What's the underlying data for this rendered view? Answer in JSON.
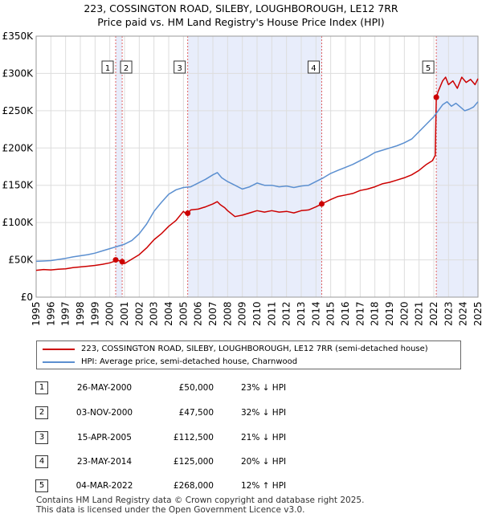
{
  "title_line1": "223, COSSINGTON ROAD, SILEBY, LOUGHBOROUGH, LE12 7RR",
  "title_line2": "Price paid vs. HM Land Registry's House Price Index (HPI)",
  "colors": {
    "property": "#cc0000",
    "hpi": "#5b8fd0",
    "shade": "#e8edfb",
    "vline": "#e06060",
    "grid": "#dddddd"
  },
  "chart_data": {
    "type": "line",
    "xlim": [
      1995,
      2025
    ],
    "ylim": [
      0,
      350000
    ],
    "y_ticks": [
      {
        "value": 0,
        "label": "£0"
      },
      {
        "value": 50000,
        "label": "£50K"
      },
      {
        "value": 100000,
        "label": "£100K"
      },
      {
        "value": 150000,
        "label": "£150K"
      },
      {
        "value": 200000,
        "label": "£200K"
      },
      {
        "value": 250000,
        "label": "£250K"
      },
      {
        "value": 300000,
        "label": "£300K"
      },
      {
        "value": 350000,
        "label": "£350K"
      }
    ],
    "x_ticks": [
      "1995",
      "1996",
      "1997",
      "1998",
      "1999",
      "2000",
      "2001",
      "2002",
      "2003",
      "2004",
      "2005",
      "2006",
      "2007",
      "2008",
      "2009",
      "2010",
      "2011",
      "2012",
      "2013",
      "2014",
      "2015",
      "2016",
      "2017",
      "2018",
      "2019",
      "2020",
      "2021",
      "2022",
      "2023",
      "2024",
      "2025"
    ],
    "shaded_ranges": [
      [
        2000.4,
        2000.84
      ],
      [
        2005.29,
        2014.39
      ],
      [
        2022.17,
        2025.0
      ]
    ],
    "series": [
      {
        "name": "223, COSSINGTON ROAD, SILEBY, LOUGHBOROUGH, LE12 7RR (semi-detached house)",
        "key": "property",
        "x": [
          1995.0,
          1995.5,
          1996.0,
          1996.5,
          1997.0,
          1997.5,
          1998.0,
          1998.5,
          1999.0,
          1999.5,
          2000.0,
          2000.3,
          2000.4,
          2000.6,
          2000.84,
          2001.0,
          2001.5,
          2002.0,
          2002.5,
          2003.0,
          2003.5,
          2004.0,
          2004.5,
          2005.0,
          2005.28,
          2005.29,
          2005.5,
          2006.0,
          2006.5,
          2007.0,
          2007.3,
          2007.5,
          2007.8,
          2008.0,
          2008.5,
          2009.0,
          2009.5,
          2010.0,
          2010.5,
          2011.0,
          2011.5,
          2012.0,
          2012.5,
          2013.0,
          2013.5,
          2014.0,
          2014.39,
          2014.5,
          2015.0,
          2015.5,
          2016.0,
          2016.5,
          2017.0,
          2017.5,
          2018.0,
          2018.5,
          2019.0,
          2019.5,
          2020.0,
          2020.5,
          2021.0,
          2021.5,
          2021.9,
          2022.1,
          2022.17,
          2022.3,
          2022.6,
          2022.8,
          2023.0,
          2023.3,
          2023.6,
          2023.9,
          2024.2,
          2024.5,
          2024.8,
          2025.0
        ],
        "y": [
          36000,
          37000,
          36500,
          37500,
          38000,
          39500,
          40500,
          41500,
          42500,
          44000,
          46000,
          48000,
          50000,
          49000,
          47500,
          45000,
          51000,
          57000,
          66000,
          77000,
          85000,
          95000,
          103000,
          115000,
          110000,
          112500,
          117000,
          118000,
          121000,
          125000,
          128000,
          124000,
          120000,
          116000,
          108000,
          110000,
          113000,
          116000,
          114000,
          116000,
          114000,
          115000,
          113000,
          116000,
          117000,
          121000,
          125000,
          126000,
          131000,
          135000,
          137000,
          139000,
          143000,
          145000,
          148000,
          152000,
          154000,
          157000,
          160000,
          164000,
          170000,
          178000,
          183000,
          190000,
          268000,
          276000,
          290000,
          295000,
          285000,
          290000,
          280000,
          295000,
          288000,
          292000,
          285000,
          293000
        ]
      },
      {
        "name": "HPI: Average price, semi-detached house, Charnwood",
        "key": "hpi",
        "x": [
          1995.0,
          1995.5,
          1996.0,
          1996.5,
          1997.0,
          1997.5,
          1998.0,
          1998.5,
          1999.0,
          1999.5,
          2000.0,
          2000.5,
          2001.0,
          2001.5,
          2002.0,
          2002.5,
          2003.0,
          2003.5,
          2004.0,
          2004.5,
          2005.0,
          2005.5,
          2006.0,
          2006.5,
          2007.0,
          2007.3,
          2007.6,
          2008.0,
          2008.5,
          2009.0,
          2009.5,
          2010.0,
          2010.5,
          2011.0,
          2011.5,
          2012.0,
          2012.5,
          2013.0,
          2013.5,
          2014.0,
          2014.5,
          2015.0,
          2015.5,
          2016.0,
          2016.5,
          2017.0,
          2017.5,
          2018.0,
          2018.5,
          2019.0,
          2019.5,
          2020.0,
          2020.5,
          2021.0,
          2021.5,
          2022.0,
          2022.3,
          2022.6,
          2022.9,
          2023.2,
          2023.5,
          2023.8,
          2024.1,
          2024.4,
          2024.7,
          2025.0
        ],
        "y": [
          48000,
          48500,
          49000,
          50500,
          52000,
          54000,
          55500,
          57000,
          59000,
          62000,
          65000,
          68000,
          71000,
          76000,
          85000,
          98000,
          115000,
          127000,
          138000,
          144000,
          147000,
          148000,
          153000,
          158000,
          164000,
          167000,
          160000,
          155000,
          150000,
          145000,
          148000,
          153000,
          150000,
          150000,
          148000,
          149000,
          147000,
          149000,
          150000,
          155000,
          160000,
          166000,
          170000,
          174000,
          178000,
          183000,
          188000,
          194000,
          197000,
          200000,
          203000,
          207000,
          212000,
          222000,
          232000,
          242000,
          250000,
          258000,
          262000,
          256000,
          260000,
          255000,
          250000,
          252000,
          255000,
          262000
        ]
      }
    ],
    "sales": [
      {
        "n": "1",
        "x": 2000.4,
        "y": 50000
      },
      {
        "n": "2",
        "x": 2000.84,
        "y": 47500
      },
      {
        "n": "3",
        "x": 2005.29,
        "y": 112500
      },
      {
        "n": "4",
        "x": 2014.39,
        "y": 125000
      },
      {
        "n": "5",
        "x": 2022.17,
        "y": 268000
      }
    ]
  },
  "legend": {
    "property_label": "223, COSSINGTON ROAD, SILEBY, LOUGHBOROUGH, LE12 7RR (semi-detached house)",
    "hpi_label": "HPI: Average price, semi-detached house, Charnwood"
  },
  "transactions": [
    {
      "n": "1",
      "date": "26-MAY-2000",
      "price": "£50,000",
      "hpi": "23% ↓ HPI"
    },
    {
      "n": "2",
      "date": "03-NOV-2000",
      "price": "£47,500",
      "hpi": "32% ↓ HPI"
    },
    {
      "n": "3",
      "date": "15-APR-2005",
      "price": "£112,500",
      "hpi": "21% ↓ HPI"
    },
    {
      "n": "4",
      "date": "23-MAY-2014",
      "price": "£125,000",
      "hpi": "20% ↓ HPI"
    },
    {
      "n": "5",
      "date": "04-MAR-2022",
      "price": "£268,000",
      "hpi": "12% ↑ HPI"
    }
  ],
  "footer_line1": "Contains HM Land Registry data © Crown copyright and database right 2025.",
  "footer_line2": "This data is licensed under the Open Government Licence v3.0."
}
